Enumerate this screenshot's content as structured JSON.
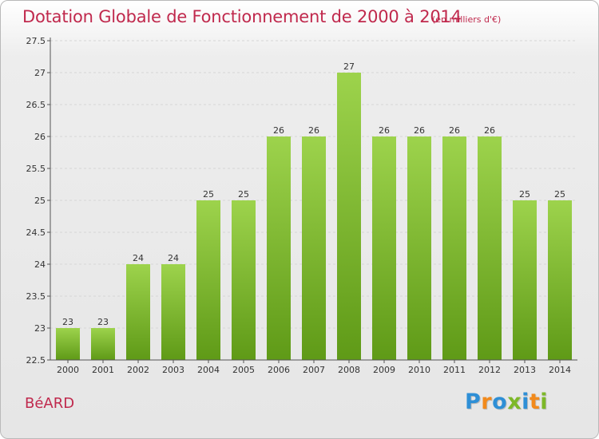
{
  "chart_data": {
    "type": "bar",
    "title": "Dotation Globale de Fonctionnement de 2000 à 2014",
    "subtitle": "(en milliers d'€)",
    "categories": [
      "2000",
      "2001",
      "2002",
      "2003",
      "2004",
      "2005",
      "2006",
      "2007",
      "2008",
      "2009",
      "2010",
      "2011",
      "2012",
      "2013",
      "2014"
    ],
    "values": [
      23,
      23,
      24,
      24,
      25,
      25,
      26,
      26,
      27,
      26,
      26,
      26,
      26,
      25,
      25
    ],
    "ylim": [
      22.5,
      27.5
    ],
    "yticks": [
      "22.5",
      "23",
      "23.5",
      "24",
      "24.5",
      "25",
      "25.5",
      "26",
      "26.5",
      "27",
      "27.5"
    ],
    "xlabel": "",
    "ylabel": "",
    "bar_color": "#7fbf2a"
  },
  "footer": {
    "commune": "BéARD",
    "logo_letters": [
      "P",
      "r",
      "o",
      "x",
      "i",
      "t",
      "i"
    ],
    "logo_colors": [
      "#2e8fd6",
      "#f28a1c",
      "#2e8fd6",
      "#7db828",
      "#2e8fd6",
      "#f28a1c",
      "#7db828"
    ]
  }
}
